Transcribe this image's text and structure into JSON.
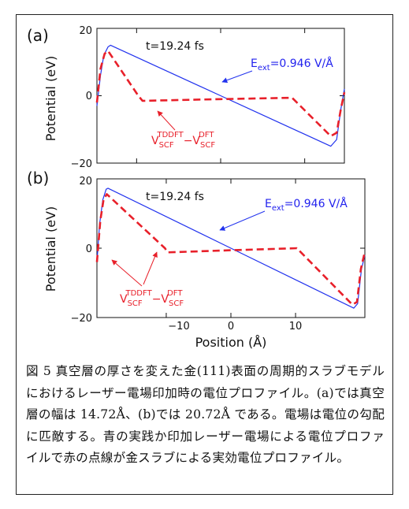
{
  "chart_data": [
    {
      "type": "line",
      "panel_label": "(a)",
      "ylabel": "Potential (eV)",
      "xlim": [
        -14.72,
        14.72
      ],
      "ylim": [
        -20,
        20
      ],
      "yticks": [
        "20",
        "0",
        "−20"
      ],
      "time_label": "t=19.24 fs",
      "field_label": {
        "base": "E",
        "sub": "ext",
        "rest": "=0.946 V/Å"
      },
      "scf_label": {
        "v1": "V",
        "sub1": "SCF",
        "sup1": "TDDFT",
        "dash": "−V",
        "sub2": "SCF",
        "sup2": "DFT"
      },
      "series": [
        {
          "style": "solid",
          "color": "#2233ee",
          "x": [
            -14.72,
            -14.3,
            -13.9,
            -13.4,
            -13.1,
            0,
            13.1,
            13.8,
            14.3,
            14.72
          ],
          "y": [
            -3,
            6,
            12,
            14.5,
            15.0,
            0,
            -15.0,
            -13,
            -4,
            2
          ]
        },
        {
          "style": "dashed",
          "color": "#e8202a",
          "x": [
            -14.72,
            -14.3,
            -13.8,
            -13.4,
            -9.8,
            -9.3,
            -9,
            0,
            8.5,
            13.1,
            13.8,
            14.3,
            14.72
          ],
          "y": [
            -2,
            8,
            12.5,
            13.3,
            0,
            -1.5,
            -1.5,
            -1,
            -0.6,
            -12,
            -11,
            -4,
            1
          ]
        }
      ]
    },
    {
      "type": "line",
      "panel_label": "(b)",
      "xlabel": "Position (Å)",
      "ylabel": "Potential (eV)",
      "xlim": [
        -20.72,
        20.72
      ],
      "ylim": [
        -20,
        20
      ],
      "xticks": [
        "−10",
        "0",
        "10"
      ],
      "yticks": [
        "20",
        "0",
        "−20"
      ],
      "time_label": "t=19.24 fs",
      "field_label": {
        "base": "E",
        "sub": "ext",
        "rest": "=0.946 V/Å"
      },
      "scf_label": {
        "v1": "V",
        "sub1": "SCF",
        "sup1": "TDDFT",
        "dash": "−V",
        "sub2": "SCF",
        "sup2": "DFT"
      },
      "series": [
        {
          "style": "solid",
          "color": "#2233ee",
          "x": [
            -20.72,
            -20.3,
            -19.8,
            -19.3,
            -19.0,
            0,
            19.0,
            19.6,
            20.2,
            20.72
          ],
          "y": [
            -4,
            7,
            14,
            17,
            17.3,
            0,
            -17.3,
            -16,
            -6,
            -2
          ]
        },
        {
          "style": "dashed",
          "color": "#e8202a",
          "x": [
            -20.72,
            -20.2,
            -19.7,
            -19.2,
            -10.2,
            -9.8,
            0,
            10.2,
            18.8,
            19.5,
            20.1,
            20.72
          ],
          "y": [
            -4,
            8,
            14,
            15.6,
            0,
            -1.2,
            -0.6,
            0,
            -16.3,
            -15.5,
            -6,
            -1
          ]
        }
      ]
    }
  ],
  "caption": "図 5 真空層の厚さを変えた金(111)表面の周期的スラブモデルにおけるレーザー電場印加時の電位プロファイル。(a)では真空層の幅は 14.72Å、(b)では 20.72Å である。電場は電位の勾配に匹敵する。青の実践か印加レーザー電場による電位プロファイルで赤の点線が金スラブによる実効電位プロファイル。"
}
